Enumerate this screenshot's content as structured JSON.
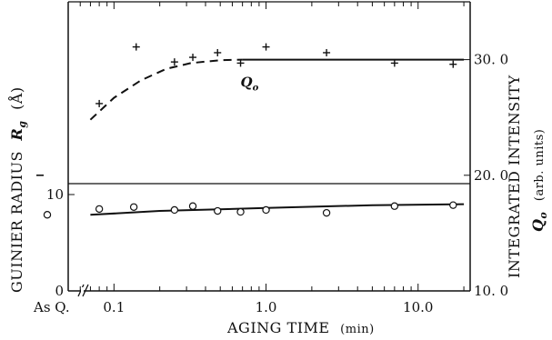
{
  "chart_data": {
    "type": "scatter",
    "xlabel": "AGING TIME",
    "xlabel_unit": "(min)",
    "x_scale": "log",
    "x_range": [
      0.05,
      22
    ],
    "x_ticks": [
      {
        "value": 0.1,
        "label": "0.1"
      },
      {
        "value": 1.0,
        "label": "1.0"
      },
      {
        "value": 10.0,
        "label": "10.0"
      }
    ],
    "x_break_label": "As Q.",
    "left_axis": {
      "label": "GUINIER RADIUS",
      "symbol": "R",
      "symbol_sub": "g",
      "unit": "(Å)",
      "range": [
        0,
        30
      ],
      "ticks": [
        {
          "value": 0,
          "label": "0"
        },
        {
          "value": 10,
          "label": "10"
        }
      ]
    },
    "right_axis": {
      "label": "INTEGRATED INTENSITY",
      "symbol": "Q",
      "symbol_sub": "o",
      "unit": "(arb. units)",
      "range": [
        10,
        35
      ],
      "ticks": [
        {
          "value": 10,
          "label": "10. 0"
        },
        {
          "value": 20,
          "label": "20. 0"
        },
        {
          "value": 30,
          "label": "30. 0"
        }
      ]
    },
    "series": [
      {
        "axis": "right",
        "marker": "plus",
        "as_quenched": 20.0,
        "points": [
          {
            "x": 0.08,
            "y": 26.2
          },
          {
            "x": 0.14,
            "y": 31.1
          },
          {
            "x": 0.25,
            "y": 29.8
          },
          {
            "x": 0.33,
            "y": 30.2
          },
          {
            "x": 0.48,
            "y": 30.6
          },
          {
            "x": 0.68,
            "y": 29.7
          },
          {
            "x": 1.0,
            "y": 31.1
          },
          {
            "x": 2.5,
            "y": 30.6
          },
          {
            "x": 7.0,
            "y": 29.7
          },
          {
            "x": 17.0,
            "y": 29.6
          }
        ],
        "fit_dashed": [
          {
            "x": 0.07,
            "y": 24.8
          },
          {
            "x": 0.1,
            "y": 26.7
          },
          {
            "x": 0.15,
            "y": 28.2
          },
          {
            "x": 0.22,
            "y": 29.2
          },
          {
            "x": 0.32,
            "y": 29.7
          },
          {
            "x": 0.5,
            "y": 29.95
          },
          {
            "x": 0.7,
            "y": 30.0
          }
        ],
        "fit_solid": [
          {
            "x": 0.7,
            "y": 30.0
          },
          {
            "x": 20.0,
            "y": 30.0
          }
        ],
        "annotation": {
          "symbol": "Q",
          "sub": "o",
          "x": 0.68,
          "y": 28.6
        }
      },
      {
        "axis": "left",
        "marker": "circle",
        "as_quenched": 7.9,
        "points": [
          {
            "x": 0.08,
            "y": 8.5
          },
          {
            "x": 0.135,
            "y": 8.7
          },
          {
            "x": 0.25,
            "y": 8.4
          },
          {
            "x": 0.33,
            "y": 8.8
          },
          {
            "x": 0.48,
            "y": 8.3
          },
          {
            "x": 0.68,
            "y": 8.2
          },
          {
            "x": 1.0,
            "y": 8.4
          },
          {
            "x": 2.5,
            "y": 8.1
          },
          {
            "x": 7.0,
            "y": 8.8
          },
          {
            "x": 17.0,
            "y": 8.9
          }
        ],
        "fit_solid": [
          {
            "x": 0.07,
            "y": 7.9
          },
          {
            "x": 0.2,
            "y": 8.3
          },
          {
            "x": 1.0,
            "y": 8.6
          },
          {
            "x": 5.0,
            "y": 8.9
          },
          {
            "x": 20.0,
            "y": 9.0
          }
        ]
      }
    ]
  }
}
